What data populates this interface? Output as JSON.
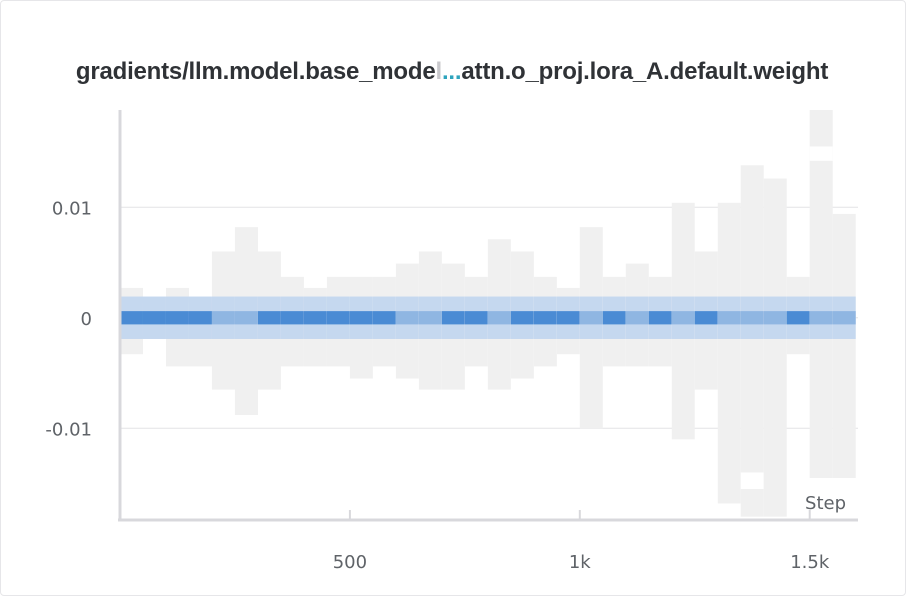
{
  "panel": {
    "title_head": "gradients/llm.model.base_mode",
    "title_fade": "l",
    "title_ellipsis": "...",
    "title_tail": "attn.o_proj.lora_A.default.weight"
  },
  "chart_data": {
    "type": "heatmap",
    "title": "gradients/llm.model.base_model...attn.o_proj.lora_A.default.weight",
    "xlabel": "Step",
    "ylabel": "",
    "xlim": [
      0,
      1605
    ],
    "ylim": [
      -0.0183,
      0.0188
    ],
    "x_ticks": [
      {
        "value": 500,
        "label": "500"
      },
      {
        "value": 1000,
        "label": "1k"
      },
      {
        "value": 1500,
        "label": "1.5k"
      }
    ],
    "y_ticks": [
      {
        "value": 0.01,
        "label": "0.01"
      },
      {
        "value": 0,
        "label": "0"
      },
      {
        "value": -0.01,
        "label": "-0.01"
      }
    ],
    "grid": true,
    "bin_width": 50,
    "bin_height": 0.0012,
    "colors": {
      "core": "#4a8bd4",
      "light": "#f0f0f0",
      "mid": "#8fb6e2",
      "edge": "#c5d8ef"
    },
    "columns": [
      {
        "x": 0,
        "min": -0.0033,
        "max": 0.0027,
        "dark": true,
        "gaps": []
      },
      {
        "x": 50,
        "min": -0.0017,
        "max": 0.0014,
        "dark": true,
        "gaps": []
      },
      {
        "x": 100,
        "min": -0.0044,
        "max": 0.0027,
        "dark": true,
        "gaps": []
      },
      {
        "x": 150,
        "min": -0.0044,
        "max": 0.0014,
        "dark": true,
        "gaps": []
      },
      {
        "x": 200,
        "min": -0.0065,
        "max": 0.006,
        "dark": false,
        "gaps": []
      },
      {
        "x": 250,
        "min": -0.0088,
        "max": 0.0082,
        "dark": false,
        "gaps": []
      },
      {
        "x": 300,
        "min": -0.0065,
        "max": 0.006,
        "dark": true,
        "gaps": []
      },
      {
        "x": 350,
        "min": -0.0044,
        "max": 0.0037,
        "dark": true,
        "gaps": []
      },
      {
        "x": 400,
        "min": -0.0044,
        "max": 0.0027,
        "dark": true,
        "gaps": []
      },
      {
        "x": 450,
        "min": -0.0044,
        "max": 0.0037,
        "dark": true,
        "gaps": []
      },
      {
        "x": 500,
        "min": -0.0055,
        "max": 0.0037,
        "dark": true,
        "gaps": []
      },
      {
        "x": 550,
        "min": -0.0044,
        "max": 0.0037,
        "dark": true,
        "gaps": []
      },
      {
        "x": 600,
        "min": -0.0055,
        "max": 0.0049,
        "dark": false,
        "gaps": []
      },
      {
        "x": 650,
        "min": -0.0065,
        "max": 0.006,
        "dark": false,
        "gaps": []
      },
      {
        "x": 700,
        "min": -0.0065,
        "max": 0.0049,
        "dark": true,
        "gaps": []
      },
      {
        "x": 750,
        "min": -0.0044,
        "max": 0.0037,
        "dark": true,
        "gaps": []
      },
      {
        "x": 800,
        "min": -0.0065,
        "max": 0.0071,
        "dark": false,
        "gaps": []
      },
      {
        "x": 850,
        "min": -0.0055,
        "max": 0.006,
        "dark": true,
        "gaps": []
      },
      {
        "x": 900,
        "min": -0.0044,
        "max": 0.0037,
        "dark": true,
        "gaps": []
      },
      {
        "x": 950,
        "min": -0.0033,
        "max": 0.0027,
        "dark": true,
        "gaps": []
      },
      {
        "x": 1000,
        "min": -0.01,
        "max": 0.0082,
        "dark": false,
        "gaps": []
      },
      {
        "x": 1050,
        "min": -0.0044,
        "max": 0.0037,
        "dark": true,
        "gaps": []
      },
      {
        "x": 1100,
        "min": -0.0044,
        "max": 0.0049,
        "dark": false,
        "gaps": []
      },
      {
        "x": 1150,
        "min": -0.0044,
        "max": 0.0037,
        "dark": true,
        "gaps": []
      },
      {
        "x": 1200,
        "min": -0.011,
        "max": 0.0104,
        "dark": false,
        "gaps": []
      },
      {
        "x": 1250,
        "min": -0.0065,
        "max": 0.006,
        "dark": true,
        "gaps": []
      },
      {
        "x": 1300,
        "min": -0.0168,
        "max": 0.0104,
        "dark": false,
        "gaps": []
      },
      {
        "x": 1350,
        "min": -0.018,
        "max": 0.0138,
        "dark": false,
        "gaps": [
          [
            0.0165,
            0.0188
          ],
          [
            -0.0155,
            -0.014
          ]
        ]
      },
      {
        "x": 1400,
        "min": -0.018,
        "max": 0.0126,
        "dark": false,
        "gaps": []
      },
      {
        "x": 1450,
        "min": -0.0033,
        "max": 0.0037,
        "dark": true,
        "gaps": []
      },
      {
        "x": 1500,
        "min": -0.0145,
        "max": 0.0188,
        "dark": false,
        "gaps": [
          [
            0.0155,
            0.0142
          ],
          [
            -0.0167,
            -0.0183
          ]
        ]
      },
      {
        "x": 1550,
        "min": -0.0145,
        "max": 0.0094,
        "dark": false,
        "gaps": []
      }
    ]
  }
}
